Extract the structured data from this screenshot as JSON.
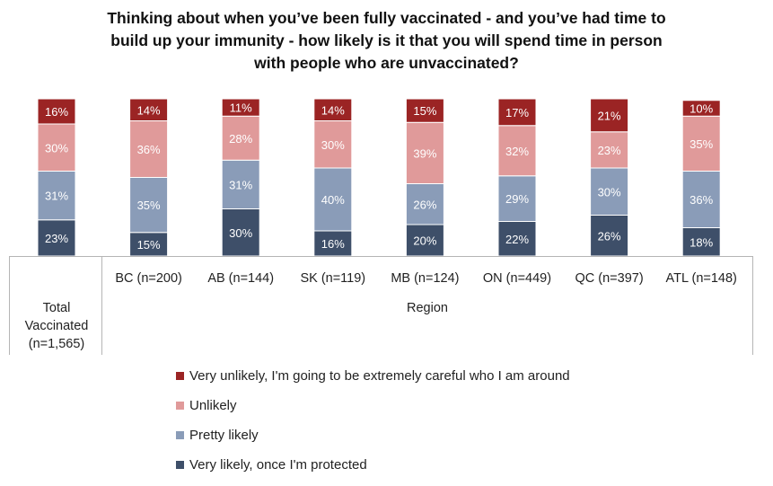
{
  "title": [
    "Thinking about when you’ve been fully vaccinated - and you’ve had time to",
    "build up your immunity - how likely is it that you will spend time in person",
    "with people who are unvaccinated?"
  ],
  "colors": {
    "very_unlikely": "#9b2424",
    "unlikely": "#e09a9a",
    "pretty_likely": "#8a9cb8",
    "very_likely": "#3e4f69"
  },
  "chart_data": {
    "type": "bar",
    "stacked": true,
    "title": "Thinking about when you’ve been fully vaccinated - and you’ve had time to build up your immunity - how likely is it that you will spend time in person with people who are unvaccinated?",
    "categories": [
      "Total Vaccinated (n=1,565)",
      "BC (n=200)",
      "AB (n=144)",
      "SK (n=119)",
      "MB (n=124)",
      "ON (n=449)",
      "QC (n=397)",
      "ATL (n=148)"
    ],
    "category_lines": [
      [
        "Total",
        "Vaccinated",
        "(n=1,565)"
      ],
      [
        "BC (n=200)"
      ],
      [
        "AB (n=144)"
      ],
      [
        "SK (n=119)"
      ],
      [
        "MB (n=124)"
      ],
      [
        "ON (n=449)"
      ],
      [
        "QC (n=397)"
      ],
      [
        "ATL (n=148)"
      ]
    ],
    "group_label": "Region",
    "series": [
      {
        "name": "Very likely, once I'm protected",
        "key": "very_likely",
        "values": [
          23,
          15,
          30,
          16,
          20,
          22,
          26,
          18
        ]
      },
      {
        "name": "Pretty likely",
        "key": "pretty_likely",
        "values": [
          31,
          35,
          31,
          40,
          26,
          29,
          30,
          36
        ]
      },
      {
        "name": "Unlikely",
        "key": "unlikely",
        "values": [
          30,
          36,
          28,
          30,
          39,
          32,
          23,
          35
        ]
      },
      {
        "name": "Very unlikely, I'm going to be extremely careful who I am around",
        "key": "very_unlikely",
        "values": [
          16,
          14,
          11,
          14,
          15,
          17,
          21,
          10
        ]
      }
    ],
    "value_suffix": "%",
    "ylim": [
      0,
      100
    ],
    "legend_position": "bottom-left",
    "grid": false
  }
}
